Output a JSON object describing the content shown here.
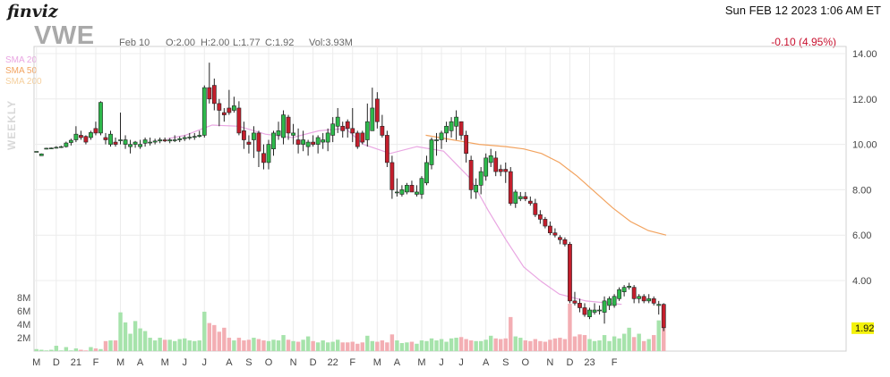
{
  "header": {
    "brand": "finviz",
    "datetime": "Sun FEB 12 2023 1:06 AM ET",
    "ticker": "VWE",
    "date": "Feb 10",
    "open": "O:2.00",
    "high": "H:2.00",
    "low": "L:1.77",
    "close": "C:1.92",
    "volume": "Vol:3.93M",
    "change": "-0.10 (4.95%)"
  },
  "legend": {
    "sma20": {
      "label": "SMA 20",
      "color": "#e9a6e2"
    },
    "sma50": {
      "label": "SMA 50",
      "color": "#f2a35f"
    },
    "sma200": {
      "label": "SMA 200",
      "color": "#f5cf9c"
    }
  },
  "side_label": "WEEKLY",
  "colors": {
    "up": "#2db84b",
    "down": "#c41e2c",
    "vol_up": "#a6e3ab",
    "vol_down": "#f3aeb3",
    "grid": "#ececec"
  },
  "chart_data": {
    "type": "candlestick",
    "title": "VWE",
    "ylabel": "",
    "price_ticks": [
      "14.00",
      "12.00",
      "10.00",
      "8.00",
      "6.00",
      "4.00"
    ],
    "price_ylim": [
      0.9,
      14.8
    ],
    "volume_ticks": [
      "8M",
      "6M",
      "4M",
      "2M"
    ],
    "volume_ylim": [
      0,
      9.5
    ],
    "last_price_label": "1.92",
    "x_labels": [
      "M",
      "D",
      "21",
      "F",
      "M",
      "A",
      "M",
      "J",
      "J",
      "A",
      "S",
      "O",
      "N",
      "D",
      "22",
      "F",
      "M",
      "A",
      "M",
      "J",
      "J",
      "A",
      "S",
      "O",
      "N",
      "D",
      "23",
      "F"
    ],
    "x_label_index": [
      0,
      4,
      8,
      12,
      17,
      21,
      26,
      30,
      34,
      39,
      43,
      47,
      52,
      56,
      60,
      64,
      69,
      73,
      78,
      82,
      86,
      91,
      95,
      99,
      104,
      108,
      112,
      117
    ],
    "series": [
      {
        "name": "VWE",
        "ohlc": [
          [
            9.69,
            9.69,
            9.69,
            9.69
          ],
          [
            9.5,
            9.6,
            9.5,
            9.58
          ],
          [
            9.8,
            9.85,
            9.78,
            9.83
          ],
          [
            9.82,
            9.86,
            9.79,
            9.84
          ],
          [
            9.84,
            9.92,
            9.82,
            9.87
          ],
          [
            9.88,
            9.94,
            9.84,
            9.9
          ],
          [
            9.9,
            10.12,
            9.86,
            10.06
          ],
          [
            10.08,
            10.25,
            9.95,
            10.18
          ],
          [
            10.2,
            10.8,
            10.1,
            10.45
          ],
          [
            10.4,
            10.6,
            10.2,
            10.3
          ],
          [
            10.35,
            10.4,
            10.0,
            10.1
          ],
          [
            10.3,
            10.6,
            10.2,
            10.52
          ],
          [
            10.7,
            11.0,
            10.4,
            10.5
          ],
          [
            10.5,
            11.9,
            10.4,
            11.85
          ],
          [
            10.3,
            10.5,
            10.0,
            10.2
          ],
          [
            10.0,
            10.6,
            9.9,
            10.45
          ],
          [
            10.1,
            10.3,
            9.9,
            10.0
          ],
          [
            10.2,
            11.4,
            10.0,
            10.2
          ],
          [
            10.0,
            10.4,
            9.8,
            10.2
          ],
          [
            9.9,
            10.2,
            9.6,
            10.0
          ],
          [
            10.0,
            10.15,
            9.85,
            10.1
          ],
          [
            9.9,
            10.2,
            9.8,
            10.0
          ],
          [
            10.05,
            10.3,
            9.9,
            10.2
          ],
          [
            10.1,
            10.3,
            9.95,
            10.1
          ],
          [
            10.1,
            10.25,
            10.0,
            10.15
          ],
          [
            10.15,
            10.3,
            10.05,
            10.2
          ],
          [
            10.2,
            10.3,
            10.1,
            10.15
          ],
          [
            10.15,
            10.28,
            10.05,
            10.2
          ],
          [
            10.2,
            10.4,
            10.1,
            10.2
          ],
          [
            10.2,
            10.35,
            10.1,
            10.25
          ],
          [
            10.25,
            10.4,
            10.15,
            10.3
          ],
          [
            10.3,
            10.5,
            10.2,
            10.32
          ],
          [
            10.35,
            10.5,
            10.2,
            10.35
          ],
          [
            10.35,
            10.6,
            10.3,
            10.4
          ],
          [
            10.4,
            12.6,
            10.3,
            12.5
          ],
          [
            12.5,
            13.6,
            11.8,
            12.0
          ],
          [
            12.6,
            12.9,
            11.5,
            11.8
          ],
          [
            11.8,
            12.0,
            10.8,
            11.5
          ],
          [
            11.4,
            11.6,
            11.0,
            11.3
          ],
          [
            11.6,
            12.4,
            11.3,
            11.4
          ],
          [
            11.5,
            12.1,
            11.4,
            11.7
          ],
          [
            11.6,
            11.9,
            10.4,
            10.5
          ],
          [
            10.6,
            11.0,
            9.8,
            10.2
          ],
          [
            10.1,
            10.4,
            9.6,
            10.0
          ],
          [
            10.2,
            10.8,
            9.4,
            10.5
          ],
          [
            10.5,
            10.6,
            9.0,
            9.7
          ],
          [
            9.6,
            10.0,
            8.9,
            9.2
          ],
          [
            9.2,
            10.2,
            8.9,
            10.0
          ],
          [
            9.8,
            10.6,
            9.5,
            10.5
          ],
          [
            10.4,
            11.0,
            10.2,
            10.6
          ],
          [
            10.3,
            11.5,
            10.0,
            11.3
          ],
          [
            11.2,
            11.3,
            10.2,
            10.5
          ],
          [
            10.4,
            10.9,
            10.0,
            10.5
          ],
          [
            10.2,
            10.7,
            9.6,
            10.0
          ],
          [
            10.0,
            10.6,
            9.7,
            10.2
          ],
          [
            9.9,
            10.2,
            9.5,
            10.1
          ],
          [
            10.1,
            10.4,
            9.9,
            10.0
          ],
          [
            10.0,
            10.4,
            9.6,
            10.3
          ],
          [
            10.1,
            10.5,
            9.8,
            10.2
          ],
          [
            10.1,
            10.7,
            9.7,
            10.5
          ],
          [
            10.4,
            11.2,
            10.1,
            10.9
          ],
          [
            10.8,
            11.6,
            10.5,
            11.2
          ],
          [
            10.8,
            11.0,
            10.3,
            10.6
          ],
          [
            11.0,
            11.1,
            10.3,
            10.7
          ],
          [
            10.7,
            11.6,
            10.1,
            10.5
          ],
          [
            10.5,
            10.6,
            9.8,
            9.9
          ],
          [
            10.5,
            10.6,
            10.0,
            10.1
          ],
          [
            10.2,
            11.8,
            9.9,
            11.0
          ],
          [
            10.6,
            12.5,
            10.6,
            11.6
          ],
          [
            12.0,
            12.3,
            10.7,
            11.0
          ],
          [
            10.8,
            11.3,
            10.3,
            10.4
          ],
          [
            10.4,
            10.6,
            9.0,
            9.2
          ],
          [
            9.2,
            9.5,
            7.6,
            8.0
          ],
          [
            7.9,
            8.5,
            7.7,
            7.9
          ],
          [
            7.8,
            8.2,
            7.7,
            8.0
          ],
          [
            7.9,
            8.3,
            7.8,
            8.2
          ],
          [
            8.2,
            8.4,
            7.9,
            7.9
          ],
          [
            7.8,
            8.2,
            7.7,
            7.9
          ],
          [
            7.8,
            8.6,
            7.6,
            8.5
          ],
          [
            8.3,
            9.5,
            8.2,
            9.2
          ],
          [
            9.1,
            10.3,
            8.9,
            10.2
          ],
          [
            10.2,
            10.5,
            9.5,
            10.2
          ],
          [
            10.2,
            10.6,
            9.8,
            10.5
          ],
          [
            10.5,
            11.0,
            10.1,
            10.8
          ],
          [
            10.6,
            11.2,
            10.3,
            11.0
          ],
          [
            10.8,
            11.5,
            10.2,
            11.2
          ],
          [
            11.0,
            11.0,
            10.2,
            10.4
          ],
          [
            10.4,
            10.6,
            9.2,
            9.6
          ],
          [
            9.3,
            9.5,
            7.6,
            8.0
          ],
          [
            7.9,
            8.5,
            7.6,
            8.2
          ],
          [
            8.2,
            9.0,
            7.8,
            8.8
          ],
          [
            8.6,
            9.6,
            8.4,
            9.4
          ],
          [
            9.2,
            9.8,
            9.0,
            9.5
          ],
          [
            9.4,
            9.7,
            8.6,
            8.8
          ],
          [
            8.9,
            9.1,
            8.6,
            8.8
          ],
          [
            8.9,
            9.2,
            8.3,
            8.8
          ],
          [
            8.8,
            9.0,
            7.3,
            7.4
          ],
          [
            7.4,
            8.0,
            7.2,
            7.9
          ],
          [
            7.6,
            7.9,
            7.5,
            7.7
          ],
          [
            7.7,
            7.9,
            7.5,
            7.6
          ],
          [
            7.5,
            7.7,
            7.3,
            7.4
          ],
          [
            7.4,
            7.6,
            6.8,
            6.9
          ],
          [
            6.9,
            7.1,
            6.5,
            6.7
          ],
          [
            6.7,
            6.8,
            6.3,
            6.4
          ],
          [
            6.4,
            6.6,
            6.0,
            6.1
          ],
          [
            6.1,
            6.3,
            5.9,
            6.0
          ],
          [
            5.9,
            6.0,
            5.6,
            5.8
          ],
          [
            5.8,
            5.9,
            5.5,
            5.6
          ],
          [
            5.6,
            5.7,
            3.0,
            3.1
          ],
          [
            3.1,
            3.5,
            2.9,
            3.0
          ],
          [
            3.0,
            3.2,
            2.6,
            2.8
          ],
          [
            2.8,
            3.0,
            2.4,
            2.5
          ],
          [
            2.4,
            2.8,
            2.3,
            2.7
          ],
          [
            2.6,
            3.0,
            2.5,
            2.7
          ],
          [
            2.7,
            2.9,
            2.5,
            2.7
          ],
          [
            2.6,
            3.3,
            2.1,
            3.1
          ],
          [
            2.9,
            3.3,
            2.7,
            3.2
          ],
          [
            2.9,
            3.4,
            2.8,
            3.3
          ],
          [
            3.2,
            3.7,
            3.1,
            3.6
          ],
          [
            3.5,
            3.8,
            3.3,
            3.7
          ],
          [
            3.7,
            3.9,
            3.6,
            3.75
          ],
          [
            3.7,
            3.8,
            3.0,
            3.2
          ],
          [
            3.2,
            3.4,
            3.0,
            3.3
          ],
          [
            3.3,
            3.4,
            3.0,
            3.1
          ],
          [
            3.1,
            3.4,
            3.0,
            3.2
          ],
          [
            3.2,
            3.3,
            2.9,
            3.0
          ],
          [
            2.9,
            3.1,
            2.5,
            2.95
          ],
          [
            2.95,
            3.0,
            1.77,
            1.92
          ]
        ],
        "volume_millions": [
          0.3,
          0.2,
          0.1,
          0.2,
          0.8,
          0.1,
          0.6,
          0.1,
          0.4,
          0.2,
          0.1,
          0.6,
          0.4,
          0.3,
          1.5,
          1.6,
          1.6,
          5.8,
          4.3,
          2.6,
          4.5,
          3.4,
          3.0,
          2.0,
          1.6,
          2.0,
          1.7,
          1.7,
          1.5,
          1.8,
          1.9,
          1.6,
          1.5,
          1.6,
          5.9,
          4.2,
          3.9,
          2.9,
          3.5,
          2.0,
          1.6,
          2.0,
          1.6,
          1.7,
          2.0,
          1.8,
          1.6,
          1.5,
          1.7,
          1.6,
          2.4,
          1.7,
          1.5,
          1.4,
          1.7,
          2.2,
          1.5,
          1.3,
          1.6,
          1.3,
          1.4,
          1.7,
          1.3,
          1.3,
          1.4,
          1.1,
          1.3,
          2.3,
          1.5,
          1.4,
          1.6,
          1.3,
          2.5,
          1.6,
          1.2,
          1.3,
          1.4,
          1.1,
          1.6,
          1.5,
          1.9,
          1.6,
          1.8,
          1.4,
          1.9,
          2.0,
          2.1,
          1.8,
          1.6,
          1.5,
          1.5,
          1.7,
          2.3,
          1.9,
          1.8,
          1.9,
          5.1,
          2.2,
          2.0,
          1.6,
          1.5,
          1.8,
          1.5,
          1.4,
          1.7,
          1.9,
          2.0,
          1.8,
          7.1,
          2.2,
          2.5,
          2.4,
          1.8,
          1.5,
          1.6,
          2.4,
          1.5,
          2.2,
          1.9,
          2.6,
          3.5,
          2.1,
          2.6,
          1.5,
          1.8,
          2.4,
          4.6,
          3.9
        ]
      },
      {
        "name": "SMA 20",
        "points": [
          [
            30,
            10.25
          ],
          [
            34,
            10.4
          ],
          [
            40,
            10.85
          ],
          [
            46,
            10.8
          ],
          [
            52,
            10.45
          ],
          [
            58,
            10.3
          ],
          [
            64,
            10.6
          ],
          [
            70,
            10.7
          ],
          [
            74,
            10.0
          ],
          [
            80,
            9.6
          ],
          [
            86,
            9.9
          ],
          [
            92,
            9.7
          ],
          [
            98,
            8.5
          ],
          [
            102,
            7.1
          ],
          [
            106,
            5.8
          ],
          [
            110,
            4.6
          ],
          [
            114,
            3.95
          ],
          [
            118,
            3.4
          ],
          [
            124,
            3.1
          ],
          [
            132,
            2.95
          ]
        ]
      },
      {
        "name": "SMA 50",
        "points": [
          [
            88,
            10.4
          ],
          [
            94,
            10.2
          ],
          [
            100,
            10.0
          ],
          [
            106,
            9.9
          ],
          [
            110,
            9.8
          ],
          [
            114,
            9.6
          ],
          [
            118,
            9.2
          ],
          [
            122,
            8.6
          ],
          [
            126,
            7.9
          ],
          [
            130,
            7.2
          ],
          [
            134,
            6.6
          ],
          [
            138,
            6.2
          ],
          [
            142,
            6.0
          ]
        ]
      }
    ]
  }
}
